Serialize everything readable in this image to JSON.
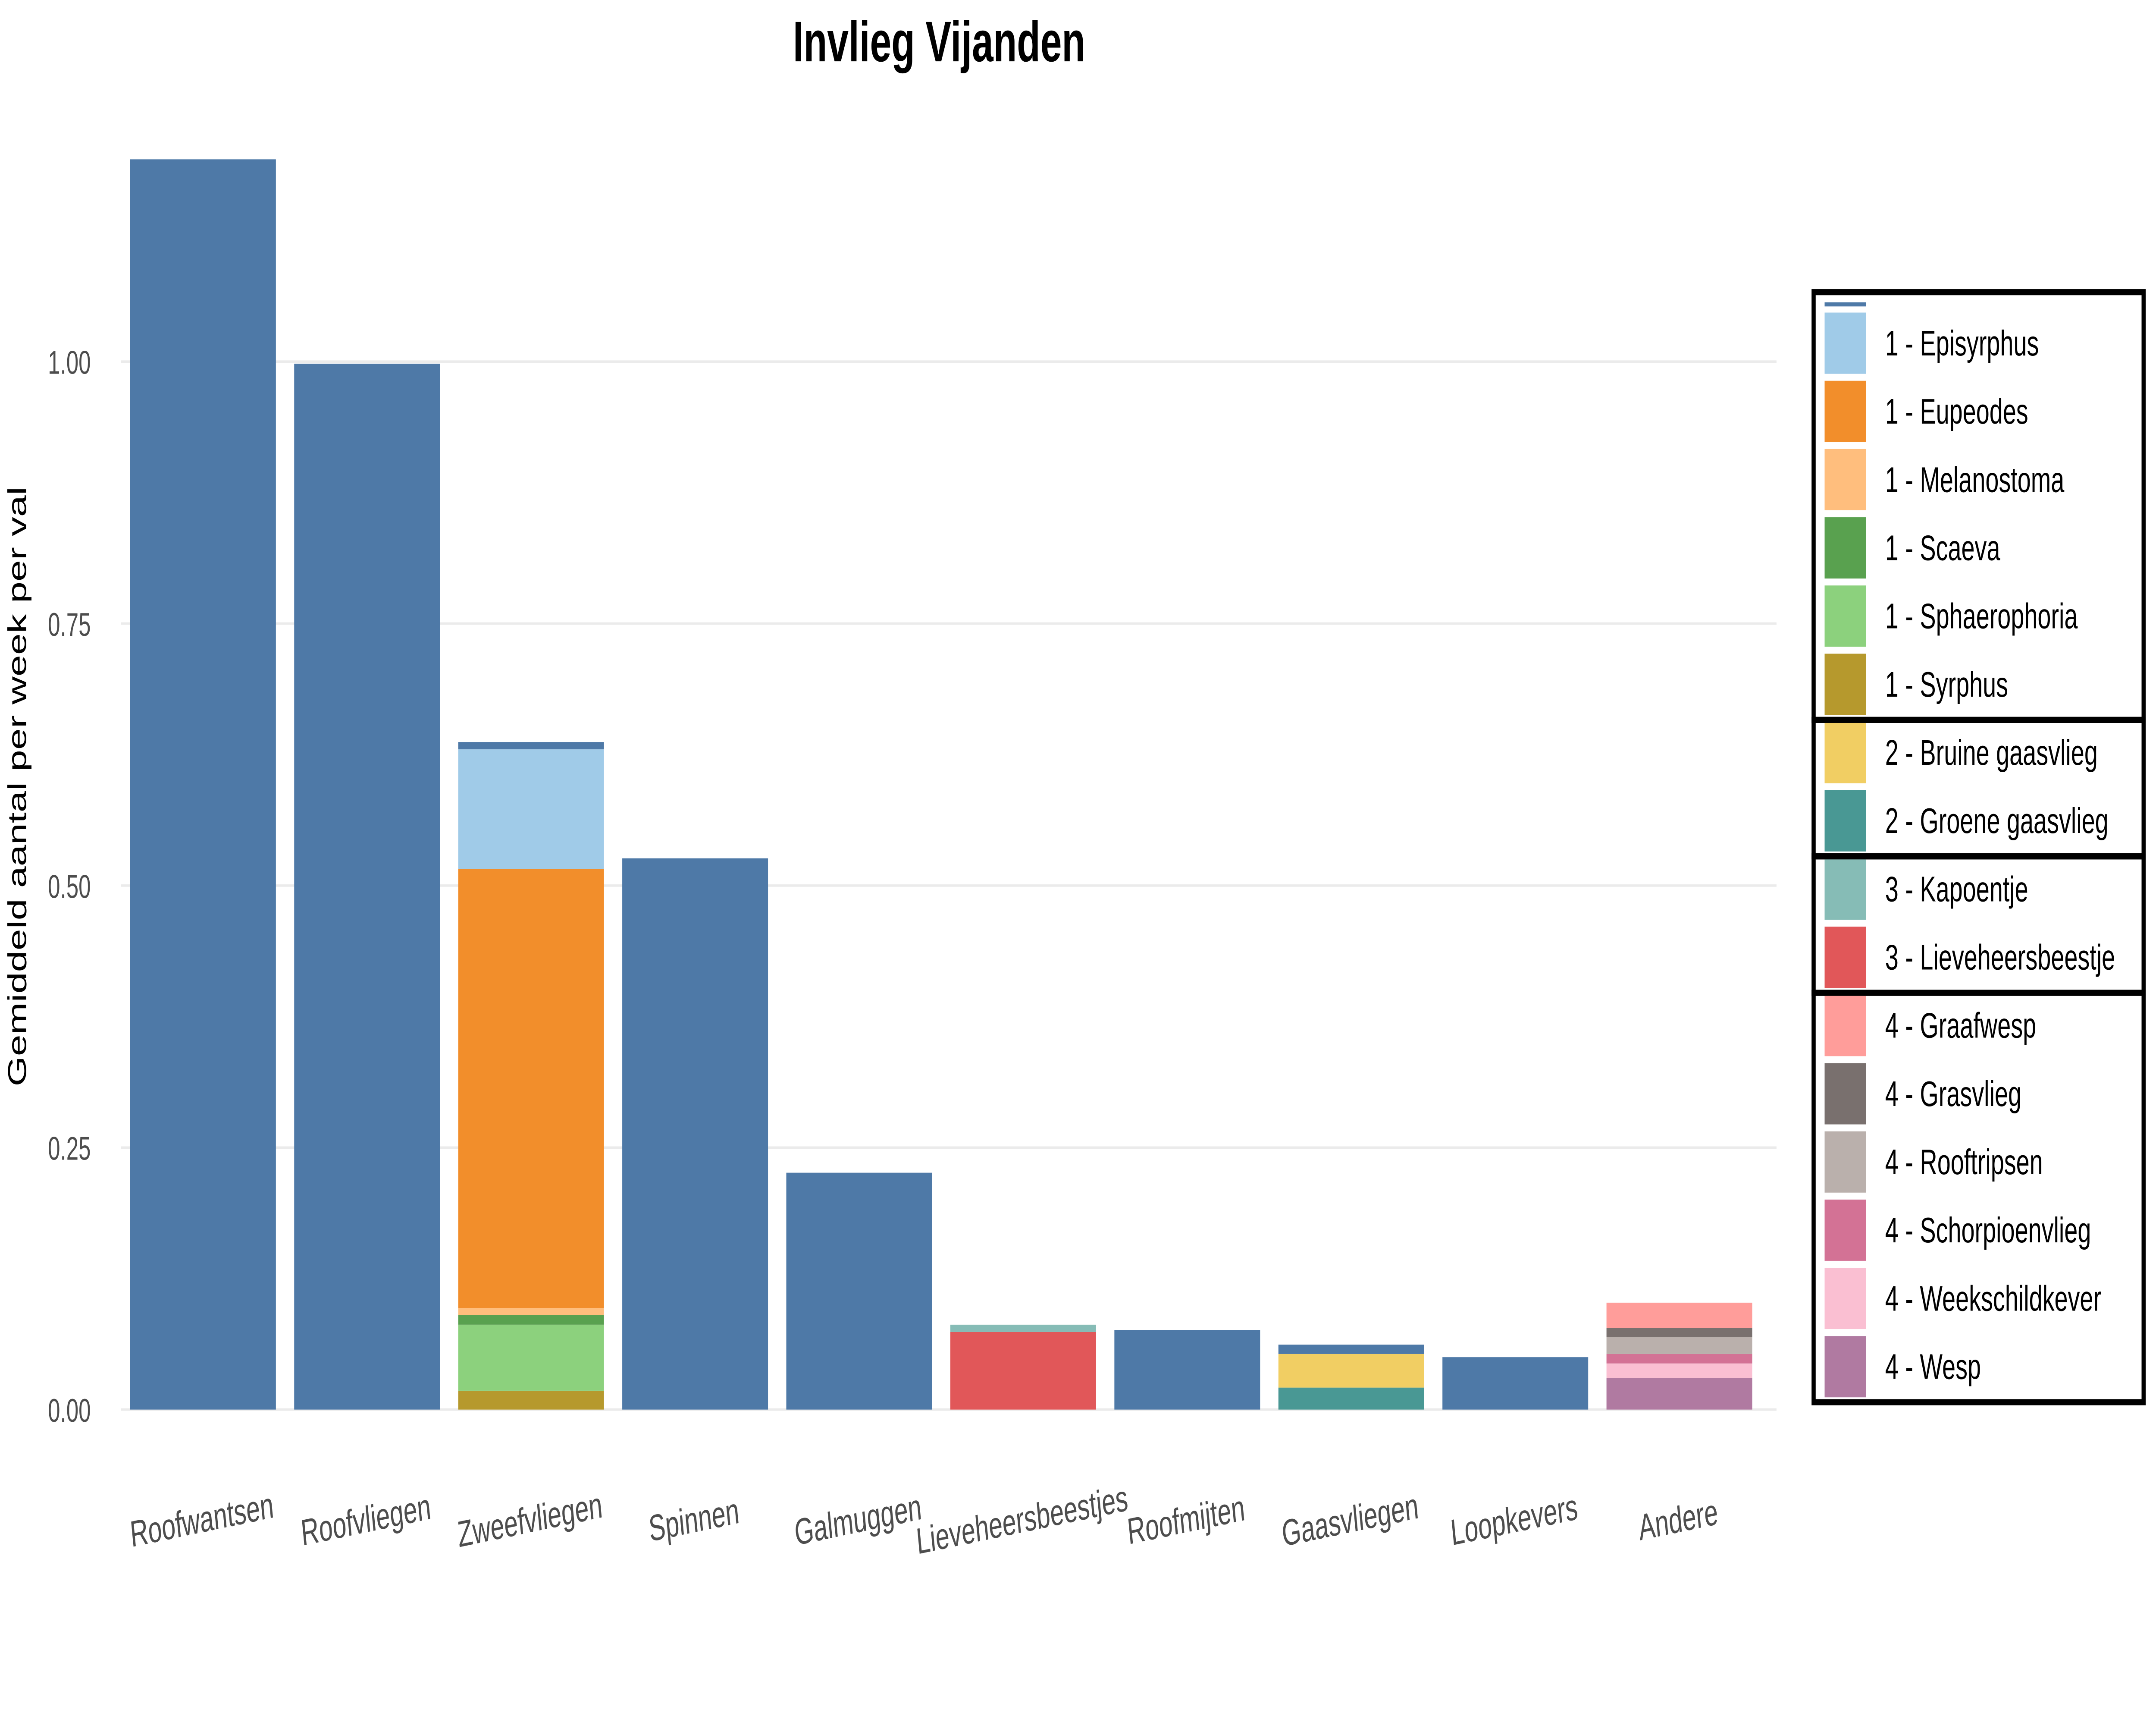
{
  "chart_data": {
    "type": "bar",
    "stacked": true,
    "title": "Invlieg Vijanden",
    "xlabel": "",
    "ylabel": "Gemiddeld aantal per week per val",
    "ylim": [
      0,
      1.25
    ],
    "yticks": [
      0,
      0.25,
      0.5,
      0.75,
      1.0
    ],
    "ytick_labels": [
      "0.00",
      "0.25",
      "0.50",
      "0.75",
      "1.00"
    ],
    "grid": true,
    "legend_position": "right",
    "categories": [
      "Roofwantsen",
      "Roofvliegen",
      "Zweefvliegen",
      "Spinnen",
      "Galmuggen",
      "Lieveheersbeestjes",
      "Roofmijten",
      "Gaasvliegen",
      "Loopkevers",
      "Andere"
    ],
    "series": [
      {
        "name": "",
        "color": "#4E79A7",
        "values": [
          1.193,
          0.998,
          0.007,
          0.526,
          0.226,
          0,
          0.076,
          0.009,
          0.05,
          0
        ]
      },
      {
        "name": "1 - Episyrphus",
        "color": "#A0CBE8",
        "values": [
          0,
          0,
          0.114,
          0,
          0,
          0,
          0,
          0,
          0,
          0
        ]
      },
      {
        "name": "1 - Eupeodes",
        "color": "#F28E2B",
        "values": [
          0,
          0,
          0.419,
          0,
          0,
          0,
          0,
          0,
          0,
          0
        ]
      },
      {
        "name": "1 - Melanostoma",
        "color": "#FFBE7D",
        "values": [
          0,
          0,
          0.007,
          0,
          0,
          0,
          0,
          0,
          0,
          0
        ]
      },
      {
        "name": "1 - Scaeva",
        "color": "#59A14F",
        "values": [
          0,
          0,
          0.009,
          0,
          0,
          0,
          0,
          0,
          0,
          0
        ]
      },
      {
        "name": "1 - Sphaerophoria",
        "color": "#8CD17D",
        "values": [
          0,
          0,
          0.063,
          0,
          0,
          0,
          0,
          0,
          0,
          0
        ]
      },
      {
        "name": "1 - Syrphus",
        "color": "#B6992D",
        "values": [
          0,
          0,
          0.018,
          0,
          0,
          0,
          0,
          0,
          0,
          0
        ]
      },
      {
        "name": "2 - Bruine gaasvlieg",
        "color": "#F1CE63",
        "values": [
          0,
          0,
          0,
          0,
          0,
          0,
          0,
          0.032,
          0,
          0
        ]
      },
      {
        "name": "2 - Groene gaasvlieg",
        "color": "#499894",
        "values": [
          0,
          0,
          0,
          0,
          0,
          0,
          0,
          0.021,
          0,
          0
        ]
      },
      {
        "name": "3 - Kapoentje",
        "color": "#86BCB6",
        "values": [
          0,
          0,
          0,
          0,
          0,
          0.007,
          0,
          0,
          0,
          0
        ]
      },
      {
        "name": "3 - Lieveheersbeestje",
        "color": "#E15759",
        "values": [
          0,
          0,
          0,
          0,
          0,
          0.074,
          0,
          0,
          0,
          0
        ]
      },
      {
        "name": "4 - Graafwesp",
        "color": "#FF9D9A",
        "values": [
          0,
          0,
          0,
          0,
          0,
          0,
          0,
          0,
          0,
          0.024
        ]
      },
      {
        "name": "4 - Grasvlieg",
        "color": "#79706E",
        "values": [
          0,
          0,
          0,
          0,
          0,
          0,
          0,
          0,
          0,
          0.009
        ]
      },
      {
        "name": "4 - Rooftripsen",
        "color": "#BAB0AC",
        "values": [
          0,
          0,
          0,
          0,
          0,
          0,
          0,
          0,
          0,
          0.016
        ]
      },
      {
        "name": "4 - Schorpioenvlieg",
        "color": "#D37295",
        "values": [
          0,
          0,
          0,
          0,
          0,
          0,
          0,
          0,
          0,
          0.009
        ]
      },
      {
        "name": "4 - Weekschildkever",
        "color": "#FABFD2",
        "values": [
          0,
          0,
          0,
          0,
          0,
          0,
          0,
          0,
          0,
          0.014
        ]
      },
      {
        "name": "4 - Wesp",
        "color": "#B07AA1",
        "values": [
          0,
          0,
          0,
          0,
          0,
          0,
          0,
          0,
          0,
          0.03
        ]
      }
    ],
    "legend_groups": [
      [
        1,
        2,
        3,
        4,
        5,
        6
      ],
      [
        7,
        8
      ],
      [
        9,
        10
      ],
      [
        11,
        12,
        13,
        14,
        15,
        16
      ]
    ]
  }
}
